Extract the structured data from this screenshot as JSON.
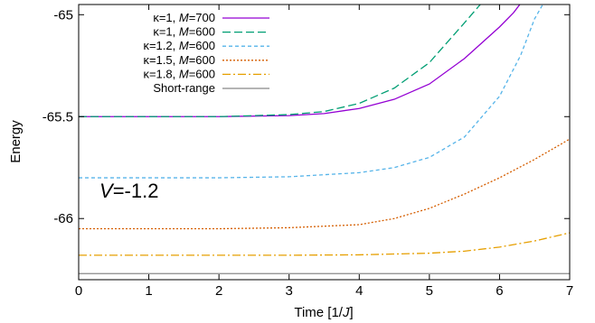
{
  "chart_data": {
    "type": "line",
    "xlabel_parts": [
      "Time [1/",
      "J",
      "]"
    ],
    "ylabel": "Energy",
    "xlim": [
      0,
      7
    ],
    "ylim": [
      -66.3,
      -64.95
    ],
    "x_ticks": [
      0,
      1,
      2,
      3,
      4,
      5,
      6,
      7
    ],
    "x_tick_labels": [
      "0",
      "1",
      "2",
      "3",
      "4",
      "5",
      "6",
      "7"
    ],
    "y_ticks": [
      -65,
      -65.5,
      -66
    ],
    "y_tick_labels": [
      "-65",
      "-65.5",
      "-66"
    ],
    "grid": false,
    "legend_position": "top-left",
    "annotation": {
      "var": "V",
      "rest": "=-1.2"
    },
    "series": [
      {
        "name_pre": "κ=1, ",
        "name_var": "M",
        "name_post": "=700",
        "color": "#9400d3",
        "dash": "",
        "x": [
          0,
          1,
          2,
          3,
          3.5,
          4,
          4.5,
          5,
          5.5,
          6,
          6.2,
          6.4
        ],
        "y": [
          -65.5,
          -65.5,
          -65.5,
          -65.495,
          -65.485,
          -65.46,
          -65.415,
          -65.34,
          -65.215,
          -65.06,
          -64.99,
          -64.9
        ]
      },
      {
        "name_pre": "κ=1, ",
        "name_var": "M",
        "name_post": "=600",
        "color": "#009e73",
        "dash": "9,4",
        "x": [
          0,
          1,
          2,
          3,
          3.5,
          4,
          4.5,
          5,
          5.5,
          5.7,
          5.9
        ],
        "y": [
          -65.5,
          -65.5,
          -65.5,
          -65.49,
          -65.475,
          -65.435,
          -65.36,
          -65.235,
          -65.04,
          -64.96,
          -64.88
        ]
      },
      {
        "name_pre": "κ=1.2, ",
        "name_var": "M",
        "name_post": "=600",
        "color": "#56b4e9",
        "dash": "4,3",
        "x": [
          0,
          1,
          2,
          3,
          4,
          4.5,
          5,
          5.5,
          6,
          6.3,
          6.5,
          6.7
        ],
        "y": [
          -65.8,
          -65.8,
          -65.8,
          -65.795,
          -65.775,
          -65.75,
          -65.7,
          -65.6,
          -65.4,
          -65.2,
          -65.02,
          -64.9
        ]
      },
      {
        "name_pre": "κ=1.5, ",
        "name_var": "M",
        "name_post": "=600",
        "color": "#d55e00",
        "dash": "2,2",
        "x": [
          0,
          1,
          2,
          3,
          4,
          4.5,
          5,
          5.5,
          6,
          6.5,
          7
        ],
        "y": [
          -66.05,
          -66.05,
          -66.05,
          -66.045,
          -66.03,
          -66.0,
          -65.95,
          -65.88,
          -65.8,
          -65.71,
          -65.61
        ]
      },
      {
        "name_pre": "κ=1.8, ",
        "name_var": "M",
        "name_post": "=600",
        "color": "#e69f00",
        "dash": "9,3,2,3",
        "x": [
          0,
          1,
          2,
          3,
          4,
          5,
          5.5,
          6,
          6.5,
          7
        ],
        "y": [
          -66.18,
          -66.18,
          -66.18,
          -66.18,
          -66.178,
          -66.17,
          -66.16,
          -66.14,
          -66.11,
          -66.07
        ]
      },
      {
        "name": "Short-range",
        "color": "#888888",
        "dash": "",
        "x": [
          0,
          7
        ],
        "y": [
          -66.27,
          -66.27
        ]
      }
    ]
  }
}
